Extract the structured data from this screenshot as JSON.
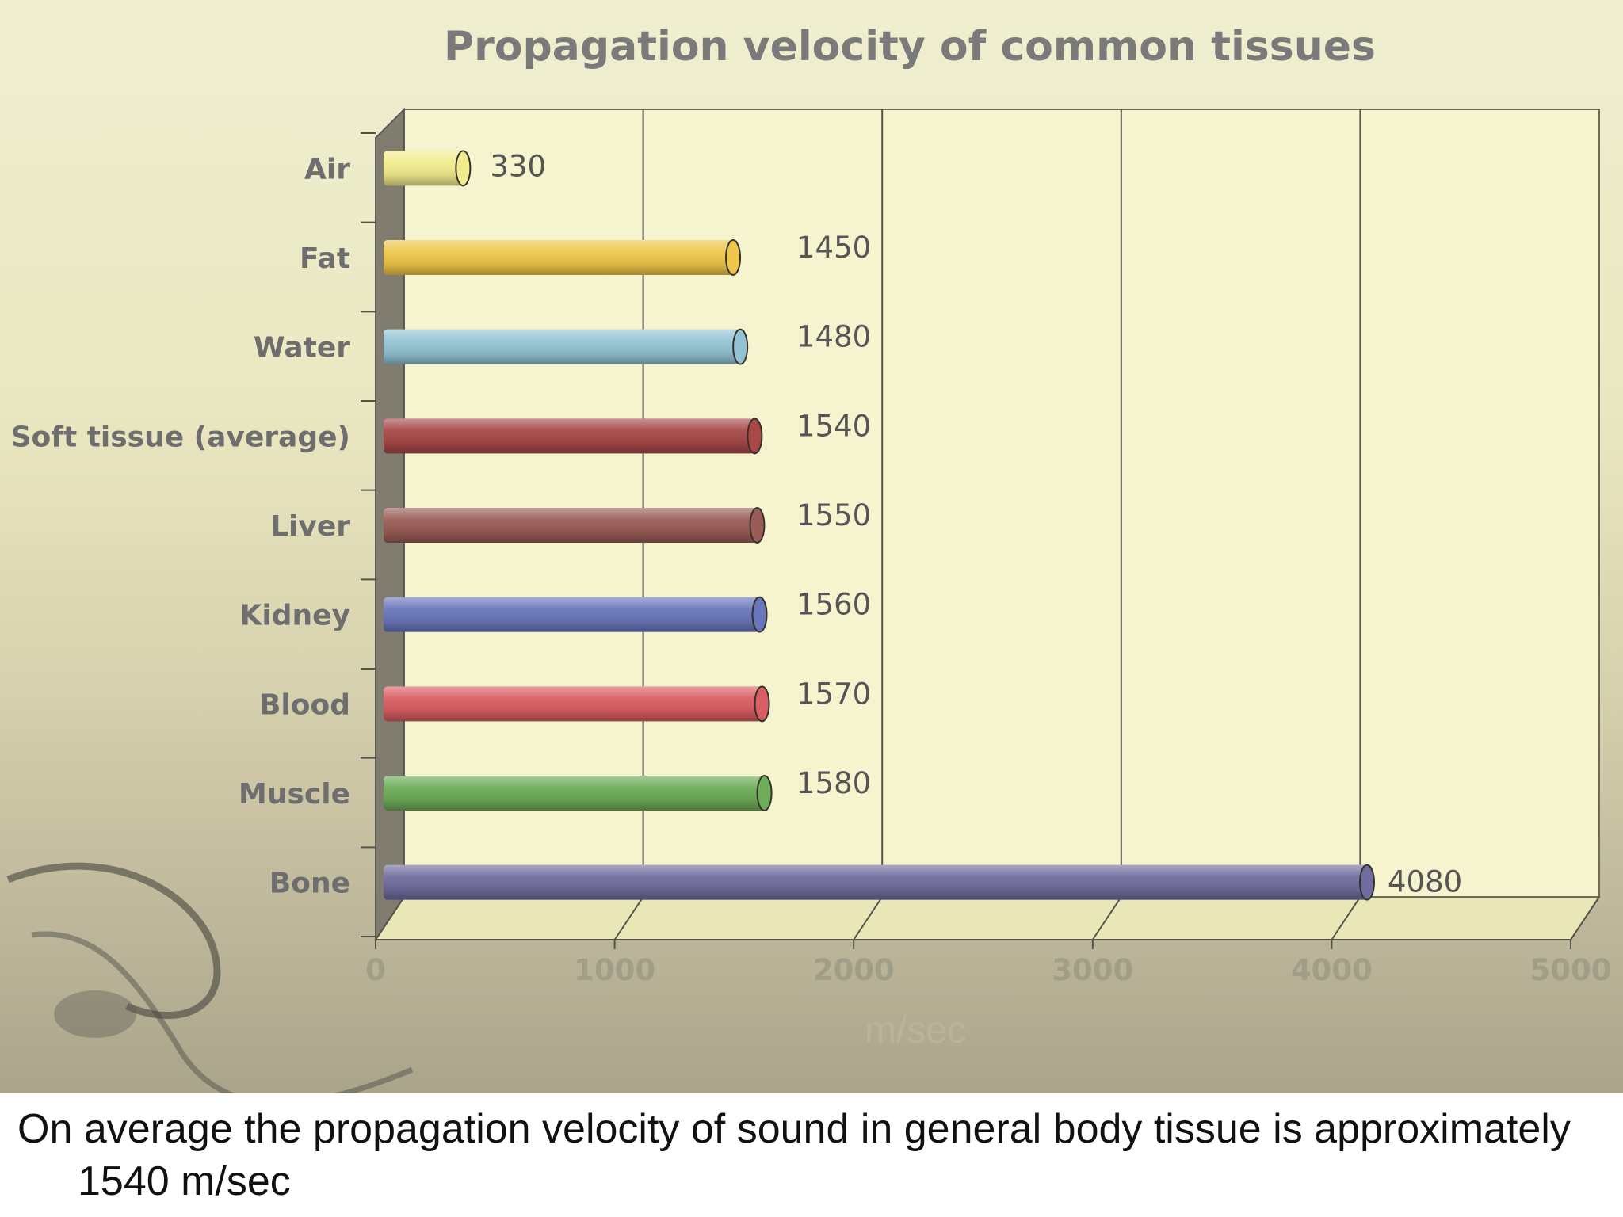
{
  "caption": "On average the propagation velocity of sound in general body tissue is approximately 1540 m/sec",
  "chart_data": {
    "type": "bar",
    "orientation": "horizontal",
    "title": "Propagation velocity of common tissues",
    "xlabel": "m/sec",
    "ylabel": "",
    "xlim": [
      0,
      5000
    ],
    "xticks": [
      0,
      1000,
      2000,
      3000,
      4000,
      5000
    ],
    "grid": true,
    "categories": [
      "Air",
      "Fat",
      "Water",
      "Soft tissue (average)",
      "Liver",
      "Kidney",
      "Blood",
      "Muscle",
      "Bone"
    ],
    "values": [
      330,
      1450,
      1480,
      1540,
      1550,
      1560,
      1570,
      1580,
      4080
    ],
    "bar_colors": [
      "#f2ec8e",
      "#efc64a",
      "#93c3d3",
      "#a84848",
      "#9a5c56",
      "#6a76bc",
      "#d95e63",
      "#6dac58",
      "#706c9e"
    ]
  }
}
